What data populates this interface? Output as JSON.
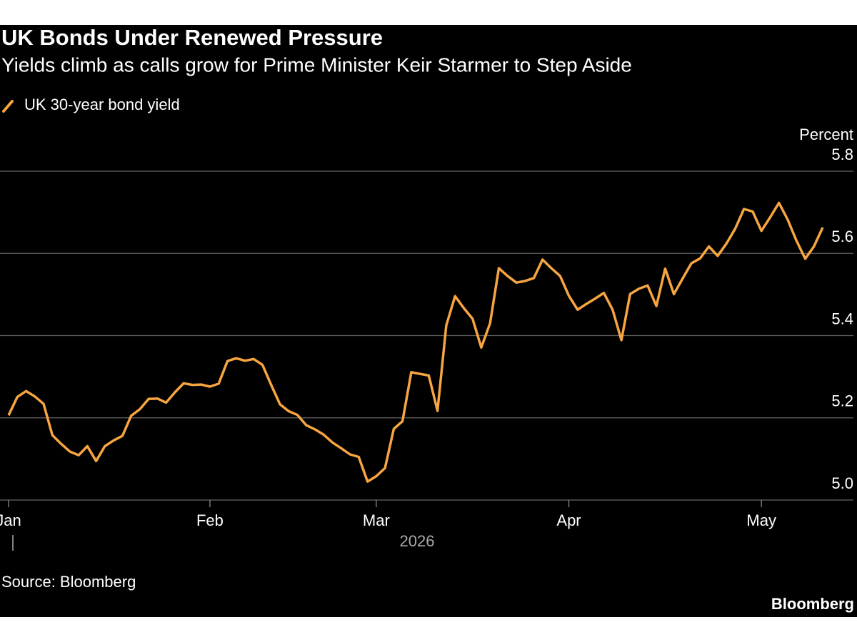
{
  "chart_data": {
    "type": "line",
    "title": "UK Bonds Under Renewed Pressure",
    "subtitle": "Yields climb as calls grow for Prime Minister Keir Starmer to Step Aside",
    "y_label": "Percent",
    "year_label": "2026",
    "source": "Source: Bloomberg",
    "brand": "Bloomberg",
    "categories": [
      "Jan",
      null,
      null,
      null,
      null,
      null,
      null,
      null,
      null,
      null,
      null,
      null,
      null,
      null,
      null,
      null,
      null,
      null,
      null,
      null,
      null,
      null,
      null,
      "Feb",
      null,
      null,
      null,
      null,
      null,
      null,
      null,
      null,
      null,
      null,
      null,
      null,
      null,
      null,
      null,
      null,
      null,
      null,
      "Mar",
      null,
      null,
      null,
      null,
      null,
      null,
      null,
      null,
      null,
      null,
      null,
      null,
      null,
      null,
      null,
      null,
      null,
      null,
      null,
      null,
      null,
      "Apr",
      null,
      null,
      null,
      null,
      null,
      null,
      null,
      null,
      null,
      null,
      null,
      null,
      null,
      null,
      null,
      null,
      null,
      null,
      null,
      null,
      null,
      "May",
      null,
      null,
      null,
      null,
      null,
      null,
      null
    ],
    "series": [
      {
        "name": "UK 30-year bond yield",
        "color": "#f7a541",
        "values": [
          5.206,
          5.251,
          5.265,
          5.252,
          5.234,
          5.158,
          5.137,
          5.118,
          5.109,
          5.131,
          5.095,
          5.131,
          5.145,
          5.156,
          5.205,
          5.221,
          5.246,
          5.247,
          5.237,
          5.262,
          5.284,
          5.28,
          5.281,
          5.276,
          5.283,
          5.338,
          5.345,
          5.339,
          5.343,
          5.329,
          5.28,
          5.233,
          5.216,
          5.207,
          5.182,
          5.172,
          5.159,
          5.14,
          5.126,
          5.111,
          5.105,
          5.045,
          5.058,
          5.078,
          5.173,
          5.192,
          5.311,
          5.307,
          5.303,
          5.217,
          5.425,
          5.496,
          5.467,
          5.441,
          5.371,
          5.43,
          5.564,
          5.545,
          5.529,
          5.533,
          5.54,
          5.585,
          5.564,
          5.545,
          5.497,
          5.463,
          5.477,
          5.49,
          5.504,
          5.463,
          5.389,
          5.501,
          5.514,
          5.522,
          5.472,
          5.563,
          5.501,
          5.539,
          5.576,
          5.588,
          5.617,
          5.594,
          5.624,
          5.66,
          5.708,
          5.702,
          5.655,
          5.688,
          5.723,
          5.682,
          5.631,
          5.587,
          5.617,
          5.663
        ]
      }
    ],
    "ylim": [
      5.0,
      5.8
    ],
    "yticks": [
      {
        "value": 5.0,
        "label": "5.0"
      },
      5.2,
      5.4,
      5.6,
      5.8
    ],
    "grid": true
  }
}
